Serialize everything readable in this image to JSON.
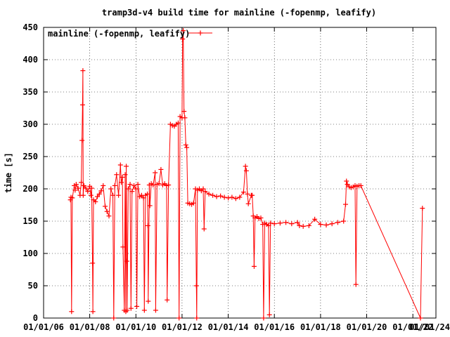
{
  "chart_data": {
    "type": "line",
    "title": "tramp3d-v4 build time for mainline (-fopenmp, leafify)",
    "xlabel": "",
    "ylabel": "time [s]",
    "x_type": "date",
    "xlim": [
      "2006-01-01",
      "2023-01-01"
    ],
    "ylim": [
      0,
      450
    ],
    "x_ticks": [
      "01/01/06",
      "01/01/08",
      "01/01/10",
      "01/01/12",
      "01/01/14",
      "01/01/16",
      "01/01/18",
      "01/01/20",
      "01/01/22",
      "01/01/24"
    ],
    "y_ticks": [
      0,
      50,
      100,
      150,
      200,
      250,
      300,
      350,
      400,
      450
    ],
    "grid": true,
    "legend_position": "top-left",
    "series": [
      {
        "name": "mainline (-fopenmp, leafify)",
        "color": "#ff0000",
        "marker": "plus",
        "points": [
          [
            "2007-03-01",
            183
          ],
          [
            "2007-03-10",
            187
          ],
          [
            "2007-03-20",
            10
          ],
          [
            "2007-04-01",
            186
          ],
          [
            "2007-05-01",
            205
          ],
          [
            "2007-05-15",
            198
          ],
          [
            "2007-06-01",
            207
          ],
          [
            "2007-07-01",
            201
          ],
          [
            "2007-08-01",
            190
          ],
          [
            "2007-08-20",
            210
          ],
          [
            "2007-09-01",
            275
          ],
          [
            "2007-09-10",
            330
          ],
          [
            "2007-09-15",
            383
          ],
          [
            "2007-09-20",
            190
          ],
          [
            "2007-10-01",
            205
          ],
          [
            "2007-11-01",
            201
          ],
          [
            "2007-12-01",
            196
          ],
          [
            "2008-01-01",
            204
          ],
          [
            "2008-01-20",
            190
          ],
          [
            "2008-02-01",
            201
          ],
          [
            "2008-02-15",
            85
          ],
          [
            "2008-02-20",
            10
          ],
          [
            "2008-03-01",
            183
          ],
          [
            "2008-04-01",
            180
          ],
          [
            "2008-05-01",
            188
          ],
          [
            "2008-06-01",
            192
          ],
          [
            "2008-07-01",
            197
          ],
          [
            "2008-08-01",
            205
          ],
          [
            "2008-09-01",
            173
          ],
          [
            "2008-10-01",
            165
          ],
          [
            "2008-11-01",
            158
          ],
          [
            "2008-12-01",
            200
          ],
          [
            "2009-01-01",
            190
          ],
          [
            "2009-01-15",
            0
          ],
          [
            "2009-02-01",
            205
          ],
          [
            "2009-03-01",
            222
          ],
          [
            "2009-04-01",
            190
          ],
          [
            "2009-05-01",
            237
          ],
          [
            "2009-05-15",
            210
          ],
          [
            "2009-06-01",
            218
          ],
          [
            "2009-06-10",
            110
          ],
          [
            "2009-07-01",
            12
          ],
          [
            "2009-07-15",
            222
          ],
          [
            "2009-07-25",
            10
          ],
          [
            "2009-08-01",
            235
          ],
          [
            "2009-08-10",
            88
          ],
          [
            "2009-08-15",
            12
          ],
          [
            "2009-09-01",
            200
          ],
          [
            "2009-10-01",
            207
          ],
          [
            "2009-10-15",
            15
          ],
          [
            "2009-11-01",
            196
          ],
          [
            "2009-12-01",
            205
          ],
          [
            "2010-01-01",
            200
          ],
          [
            "2010-01-15",
            18
          ],
          [
            "2010-02-01",
            207
          ],
          [
            "2010-03-01",
            188
          ],
          [
            "2010-04-01",
            190
          ],
          [
            "2010-05-01",
            186
          ],
          [
            "2010-05-15",
            12
          ],
          [
            "2010-06-01",
            190
          ],
          [
            "2010-07-01",
            192
          ],
          [
            "2010-07-10",
            143
          ],
          [
            "2010-07-15",
            26
          ],
          [
            "2010-08-01",
            206
          ],
          [
            "2010-08-10",
            174
          ],
          [
            "2010-09-01",
            208
          ],
          [
            "2010-10-01",
            206
          ],
          [
            "2010-11-01",
            225
          ],
          [
            "2010-11-10",
            12
          ],
          [
            "2010-12-01",
            207
          ],
          [
            "2011-01-01",
            208
          ],
          [
            "2011-02-01",
            230
          ],
          [
            "2011-03-01",
            206
          ],
          [
            "2011-04-01",
            208
          ],
          [
            "2011-05-01",
            205
          ],
          [
            "2011-05-10",
            28
          ],
          [
            "2011-06-01",
            206
          ],
          [
            "2011-07-01",
            300
          ],
          [
            "2011-08-01",
            298
          ],
          [
            "2011-09-01",
            297
          ],
          [
            "2011-10-01",
            300
          ],
          [
            "2011-11-01",
            302
          ],
          [
            "2011-11-15",
            0
          ],
          [
            "2011-12-01",
            312
          ],
          [
            "2012-01-01",
            310
          ],
          [
            "2012-01-10",
            432
          ],
          [
            "2012-01-20",
            445
          ],
          [
            "2012-02-01",
            320
          ],
          [
            "2012-02-15",
            310
          ],
          [
            "2012-03-01",
            268
          ],
          [
            "2012-03-15",
            264
          ],
          [
            "2012-04-01",
            178
          ],
          [
            "2012-05-01",
            177
          ],
          [
            "2012-06-01",
            176
          ],
          [
            "2012-07-01",
            178
          ],
          [
            "2012-08-01",
            200
          ],
          [
            "2012-08-15",
            50
          ],
          [
            "2012-08-20",
            0
          ],
          [
            "2012-09-01",
            198
          ],
          [
            "2012-10-01",
            200
          ],
          [
            "2012-11-01",
            197
          ],
          [
            "2012-12-01",
            200
          ],
          [
            "2012-12-15",
            138
          ],
          [
            "2013-01-01",
            196
          ],
          [
            "2013-03-01",
            192
          ],
          [
            "2013-05-01",
            190
          ],
          [
            "2013-07-01",
            188
          ],
          [
            "2013-09-01",
            189
          ],
          [
            "2013-11-01",
            187
          ],
          [
            "2014-01-01",
            186
          ],
          [
            "2014-03-01",
            187
          ],
          [
            "2014-05-01",
            185
          ],
          [
            "2014-07-01",
            187
          ],
          [
            "2014-09-01",
            195
          ],
          [
            "2014-10-01",
            235
          ],
          [
            "2014-10-15",
            228
          ],
          [
            "2014-11-01",
            192
          ],
          [
            "2014-11-15",
            177
          ],
          [
            "2015-01-01",
            190
          ],
          [
            "2015-01-15",
            190
          ],
          [
            "2015-02-01",
            158
          ],
          [
            "2015-02-15",
            80
          ],
          [
            "2015-03-01",
            155
          ],
          [
            "2015-04-01",
            157
          ],
          [
            "2015-05-01",
            154
          ],
          [
            "2015-06-01",
            155
          ],
          [
            "2015-07-01",
            145
          ],
          [
            "2015-07-15",
            0
          ],
          [
            "2015-08-01",
            147
          ],
          [
            "2015-09-01",
            145
          ],
          [
            "2015-10-01",
            143
          ],
          [
            "2015-10-15",
            5
          ],
          [
            "2015-11-01",
            147
          ],
          [
            "2016-01-01",
            146
          ],
          [
            "2016-04-01",
            147
          ],
          [
            "2016-07-01",
            148
          ],
          [
            "2016-10-01",
            146
          ],
          [
            "2017-01-01",
            148
          ],
          [
            "2017-02-01",
            143
          ],
          [
            "2017-04-01",
            142
          ],
          [
            "2017-07-01",
            143
          ],
          [
            "2017-10-01",
            153
          ],
          [
            "2018-01-01",
            145
          ],
          [
            "2018-04-01",
            144
          ],
          [
            "2018-07-01",
            146
          ],
          [
            "2018-10-01",
            148
          ],
          [
            "2019-01-01",
            150
          ],
          [
            "2019-02-01",
            176
          ],
          [
            "2019-02-15",
            212
          ],
          [
            "2019-03-01",
            207
          ],
          [
            "2019-04-01",
            203
          ],
          [
            "2019-05-01",
            202
          ],
          [
            "2019-06-01",
            203
          ],
          [
            "2019-07-01",
            205
          ],
          [
            "2019-07-15",
            52
          ],
          [
            "2019-08-01",
            204
          ],
          [
            "2019-09-01",
            205
          ],
          [
            "2019-10-01",
            205
          ],
          [
            "2022-05-01",
            0
          ],
          [
            "2022-06-01",
            170
          ]
        ]
      }
    ]
  }
}
